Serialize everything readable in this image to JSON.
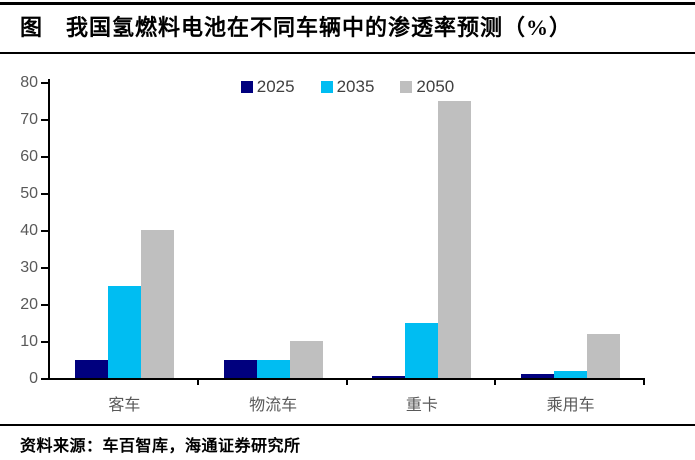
{
  "header": {
    "title": "图　我国氢燃料电池在不同车辆中的渗透率预测（%）"
  },
  "source": {
    "label": "资料来源：车百智库，海通证券研究所"
  },
  "chart_data": {
    "type": "bar",
    "title": "我国氢燃料电池在不同车辆中的渗透率预测（%）",
    "categories": [
      "客车",
      "物流车",
      "重卡",
      "乘用车"
    ],
    "series": [
      {
        "name": "2025",
        "color": "#00007E",
        "values": [
          5,
          5,
          0.5,
          1
        ]
      },
      {
        "name": "2035",
        "color": "#00BDF2",
        "values": [
          25,
          5,
          15,
          2
        ]
      },
      {
        "name": "2050",
        "color": "#BFBFBF",
        "values": [
          40,
          10,
          75,
          12
        ]
      }
    ],
    "xlabel": "",
    "ylabel": "",
    "ylim": [
      0,
      80
    ],
    "yticks": [
      0,
      10,
      20,
      30,
      40,
      50,
      60,
      70,
      80
    ],
    "grid": false,
    "legend_position": "top"
  },
  "colors": {
    "axis": "#000000",
    "tick_label": "#595959",
    "legend_text": "#404040",
    "rule": "#000000"
  }
}
